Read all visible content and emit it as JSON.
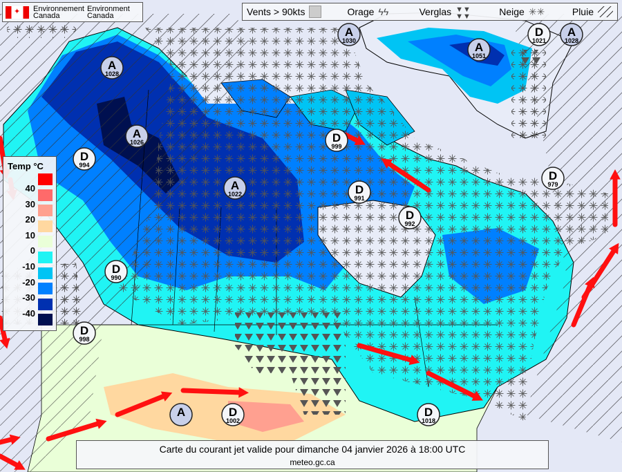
{
  "header": {
    "org_line1_fr": "Environnement",
    "org_line2_fr": "Canada",
    "org_line1_en": "Environment",
    "org_line2_en": "Canada"
  },
  "legend_bar": {
    "winds": "Vents > 90kts",
    "thunder": "Orage",
    "freezing": "Verglas",
    "snow": "Neige",
    "rain": "Pluie"
  },
  "temperature_legend": {
    "title": "Temp °C",
    "labels": [
      "40",
      "30",
      "20",
      "10",
      "0",
      "-10",
      "-20",
      "-30",
      "-40"
    ],
    "colors": [
      "#ff0000",
      "#ff6a6a",
      "#ffa090",
      "#ffd8a0",
      "#eaffd8",
      "#20f4f4",
      "#00c4f4",
      "#0080ff",
      "#0030b0",
      "#001050"
    ]
  },
  "pressure_centers": [
    {
      "type": "A",
      "value": "1030"
    },
    {
      "type": "D",
      "value": "1021"
    },
    {
      "type": "A",
      "value": "1028"
    },
    {
      "type": "A",
      "value": "1051"
    },
    {
      "type": "A",
      "value": "1028"
    },
    {
      "type": "A",
      "value": "1026"
    },
    {
      "type": "D",
      "value": "994"
    },
    {
      "type": "D",
      "value": "999"
    },
    {
      "type": "D",
      "value": "991"
    },
    {
      "type": "D",
      "value": "992"
    },
    {
      "type": "A",
      "value": "1022"
    },
    {
      "type": "D",
      "value": "979"
    },
    {
      "type": "D",
      "value": "990"
    },
    {
      "type": "D",
      "value": "998"
    },
    {
      "type": "D",
      "value": "1002"
    },
    {
      "type": "A",
      "value": ""
    },
    {
      "type": "D",
      "value": "1018"
    }
  ],
  "caption": {
    "title": "Carte du courant jet valide pour dimanche 04 janvier 2026 à 18:00 UTC",
    "source": "meteo.gc.ca"
  },
  "colors": {
    "jet_stream": "#ff1010",
    "ocean": "#e4e8f6",
    "high_center": "#c8d0ea",
    "low_center": "#f4f6fa"
  }
}
